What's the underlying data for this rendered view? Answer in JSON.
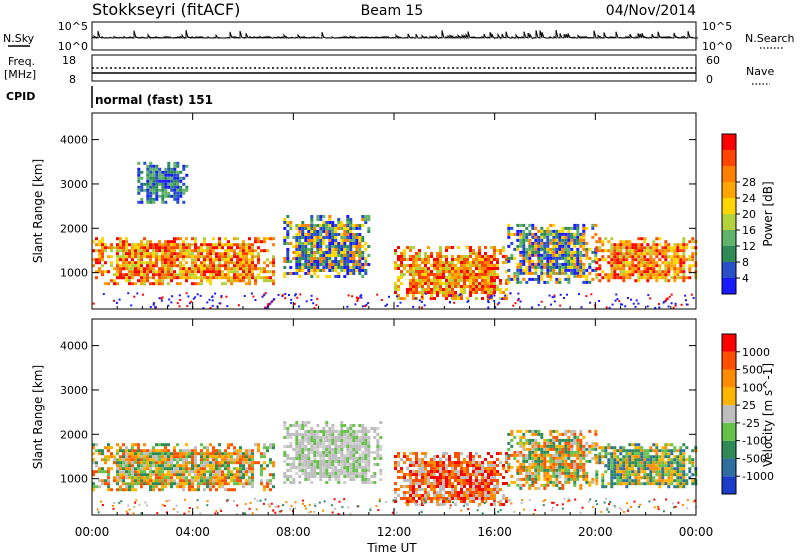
{
  "header": {
    "radar": "Stokkseyri (fitACF)",
    "beam": "Beam 15",
    "date": "04/Nov/2014"
  },
  "top_panels": {
    "nsky_label": "N.Sky",
    "nsky_ticks": [
      "10^5",
      "10^0"
    ],
    "nsearch_label": "N.Search",
    "nsearch_ticks": [
      "10^5",
      "10^0"
    ],
    "freq_label": "Freq.",
    "freq_unit": "[MHz]",
    "freq_ticks": [
      "18",
      "8"
    ],
    "nave_label": "Nave",
    "nave_ticks": [
      "60",
      "0"
    ],
    "cpid_label": "CPID",
    "cpid_value": "normal (fast) 151"
  },
  "chart_data": [
    {
      "type": "heatmap",
      "title": "",
      "quantity": "Power",
      "xlabel": "",
      "ylabel": "Slant Range [km]",
      "x_ticks": [
        "00:00",
        "04:00",
        "08:00",
        "12:00",
        "16:00",
        "20:00",
        "00:00"
      ],
      "x_range_hours": [
        0,
        24
      ],
      "y_range_km": [
        180,
        4600
      ],
      "y_ticks": [
        1000,
        2000,
        3000,
        4000
      ],
      "colorbar": {
        "label": "Power [dB]",
        "ticks": [
          "4",
          "8",
          "12",
          "16",
          "20",
          "24",
          "28"
        ],
        "colors": [
          "#1a1aff",
          "#2850c8",
          "#2e8b57",
          "#5fb36a",
          "#b4d23c",
          "#ffd700",
          "#ffa500",
          "#ff7f00",
          "#ff4500",
          "#ff0000"
        ]
      },
      "regions": [
        {
          "t0": 0.0,
          "t1": 7.2,
          "r0": 750,
          "r1": 1800,
          "level": "high"
        },
        {
          "t0": 7.6,
          "t1": 11.0,
          "r0": 900,
          "r1": 2300,
          "level": "mid"
        },
        {
          "t0": 12.0,
          "t1": 16.5,
          "r0": 400,
          "r1": 1600,
          "level": "high"
        },
        {
          "t0": 16.5,
          "t1": 20.0,
          "r0": 800,
          "r1": 2100,
          "level": "mid"
        },
        {
          "t0": 20.0,
          "t1": 24.0,
          "r0": 800,
          "r1": 1800,
          "level": "high"
        },
        {
          "t0": 1.8,
          "t1": 3.8,
          "r0": 2600,
          "r1": 3500,
          "level": "low"
        }
      ]
    },
    {
      "type": "heatmap",
      "title": "",
      "quantity": "Velocity",
      "xlabel": "Time UT",
      "ylabel": "Slant Range [km]",
      "x_ticks": [
        "00:00",
        "04:00",
        "08:00",
        "12:00",
        "16:00",
        "20:00",
        "00:00"
      ],
      "x_range_hours": [
        0,
        24
      ],
      "y_range_km": [
        180,
        4600
      ],
      "y_ticks": [
        1000,
        2000,
        3000,
        4000
      ],
      "colorbar": {
        "label": "Velocity [m s^-1]",
        "ticks": [
          "1000",
          "500",
          "100",
          "25",
          "-25",
          "-100",
          "-500",
          "-1000"
        ],
        "colors": [
          "#1a3cc8",
          "#2e6ea0",
          "#2e8b57",
          "#66c24a",
          "#bebebe",
          "#ffb400",
          "#ff8c00",
          "#ff5000",
          "#ff0000"
        ]
      },
      "regions": [
        {
          "t0": 0.0,
          "t1": 7.2,
          "r0": 750,
          "r1": 1800,
          "level": "orange"
        },
        {
          "t0": 7.6,
          "t1": 11.5,
          "r0": 900,
          "r1": 2300,
          "level": "grey"
        },
        {
          "t0": 12.0,
          "t1": 16.5,
          "r0": 400,
          "r1": 1600,
          "level": "red"
        },
        {
          "t0": 16.5,
          "t1": 20.0,
          "r0": 800,
          "r1": 2100,
          "level": "orange"
        },
        {
          "t0": 20.0,
          "t1": 24.0,
          "r0": 800,
          "r1": 1800,
          "level": "green"
        }
      ]
    }
  ]
}
